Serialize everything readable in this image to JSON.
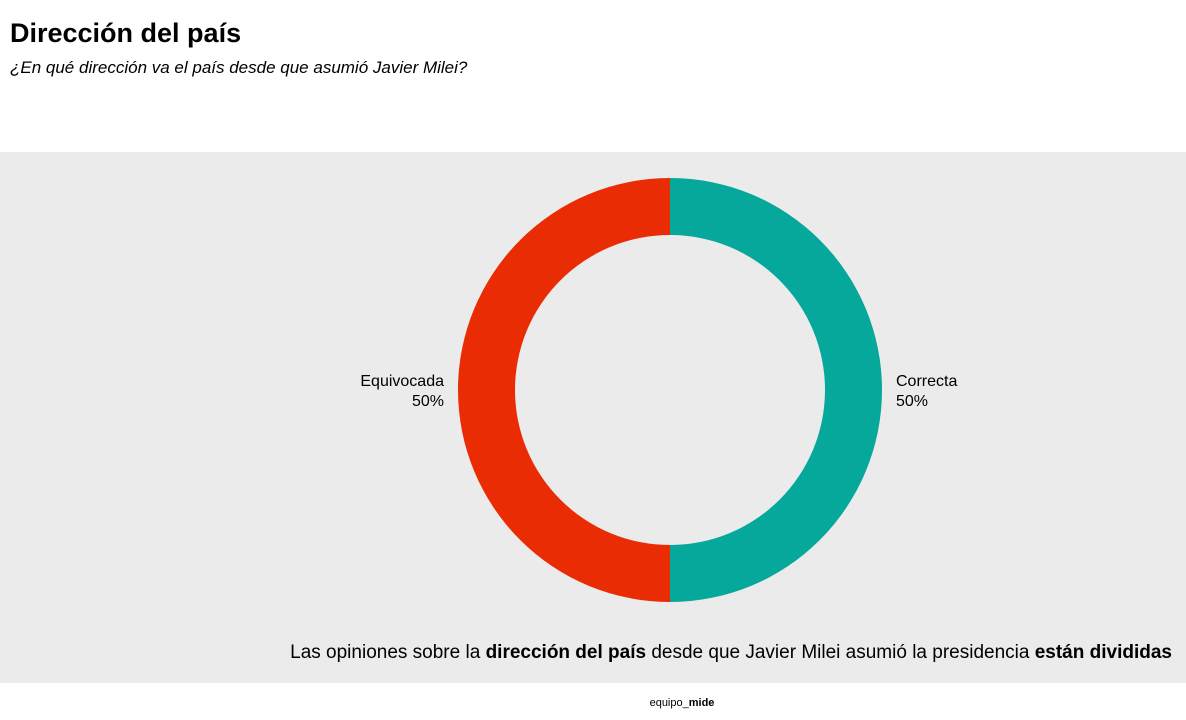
{
  "chart_data": {
    "type": "pie",
    "title": "Dirección del país",
    "subtitle": "¿En qué dirección va el país desde que asumió Javier Milei?",
    "categories": [
      "Correcta",
      "Equivocada"
    ],
    "values": [
      50,
      50
    ],
    "value_labels": [
      "50%",
      "50%"
    ],
    "colors": [
      "#05a89a",
      "#ea2c05"
    ],
    "donut": true,
    "annotation": [
      "Las opiniones sobre la ",
      "dirección del país",
      " desde que Javier Milei asumió la presidencia ",
      "están divididas"
    ],
    "source": [
      "equipo_",
      "mide"
    ]
  }
}
